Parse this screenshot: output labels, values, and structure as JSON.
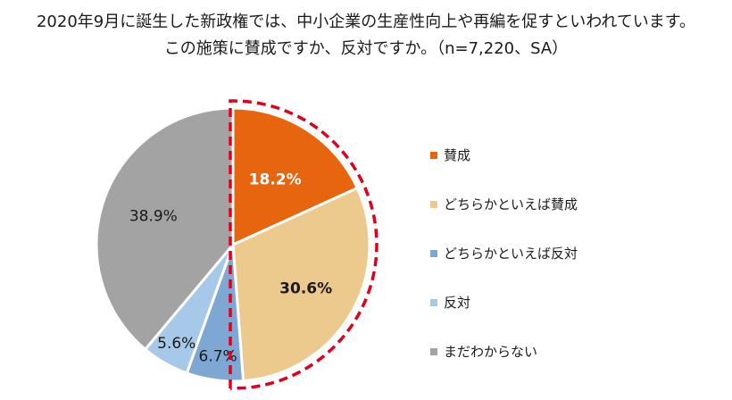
{
  "title_lines": [
    "2020年9月に誕生した新政権では、中小企業の生産性向上や再編を促すといわれています。",
    "この施策に賛成ですか、反対ですか。（n=7,220、SA）"
  ],
  "chart_data": {
    "type": "pie",
    "title": "2020年9月に誕生した新政権では、中小企業の生産性向上や再編を促すといわれています。この施策に賛成ですか、反対ですか。（n=7,220、SA）",
    "start_angle": "12 o'clock, clockwise",
    "legend_position": "right",
    "highlight": {
      "style": "red dashed outline",
      "color": "#e0001b",
      "categories": [
        "賛成",
        "どちらかといえば賛成"
      ]
    },
    "slices": [
      {
        "label": "賛成",
        "value": 18.2,
        "display": "18.2%",
        "color": "#e8650f",
        "label_color": "#ffffff",
        "bold": true
      },
      {
        "label": "どちらかといえば賛成",
        "value": 30.6,
        "display": "30.6%",
        "color": "#ecc98c",
        "label_color": "#1a1a1a",
        "bold": true
      },
      {
        "label": "どちらかといえば反対",
        "value": 6.7,
        "display": "6.7%",
        "color": "#7fa7d3",
        "label_color": "#1a1a1a",
        "bold": false
      },
      {
        "label": "反対",
        "value": 5.6,
        "display": "5.6%",
        "color": "#a6c8e9",
        "label_color": "#1a1a1a",
        "bold": false
      },
      {
        "label": "まだわからない",
        "value": 38.9,
        "display": "38.9%",
        "color": "#a3a3a3",
        "label_color": "#1a1a1a",
        "bold": false
      }
    ]
  }
}
